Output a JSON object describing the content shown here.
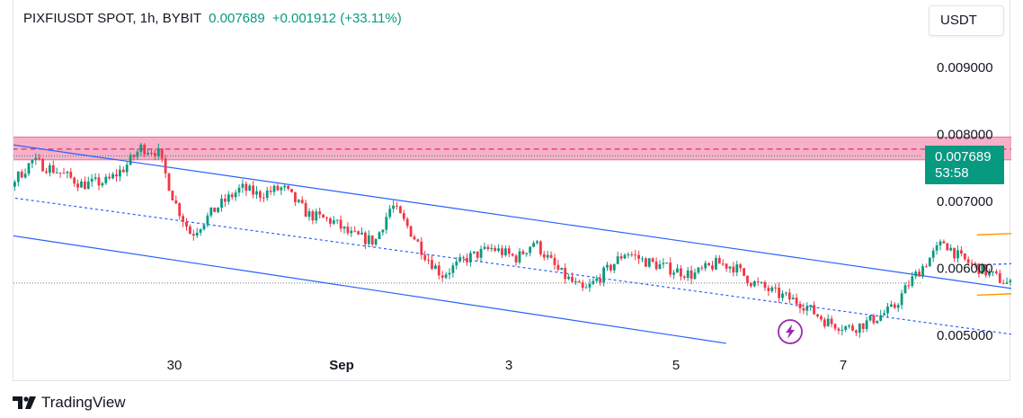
{
  "header": {
    "symbol": "PIXFIUSDT SPOT, 1h, BYBIT",
    "price": "0.007689",
    "change": "+0.001912 (+33.11%)"
  },
  "currency_button": "USDT",
  "price_tag": {
    "price": "0.007689",
    "countdown": "53:58"
  },
  "branding": "TradingView",
  "chart_data": {
    "type": "candlestick",
    "symbol": "PIXFIUSDT",
    "interval": "1h",
    "exchange": "BYBIT",
    "y_axis": {
      "min": 0.0049,
      "max": 0.0093,
      "ticks": [
        "0.009000",
        "0.008000",
        "0.007000",
        "0.006000",
        "0.005000"
      ]
    },
    "x_axis": {
      "ticks": [
        {
          "label": "30",
          "day": 30
        },
        {
          "label": "Sep",
          "day": 32
        },
        {
          "label": "3",
          "day": 34
        },
        {
          "label": "5",
          "day": 36
        },
        {
          "label": "7",
          "day": 38
        }
      ]
    },
    "series_path": [
      [
        27.2,
        0.00765
      ],
      [
        27.5,
        0.008
      ],
      [
        27.8,
        0.0077
      ],
      [
        28.0,
        0.0072
      ],
      [
        28.3,
        0.0076
      ],
      [
        28.6,
        0.00745
      ],
      [
        28.9,
        0.00725
      ],
      [
        29.2,
        0.0073
      ],
      [
        29.4,
        0.0075
      ],
      [
        29.6,
        0.0078
      ],
      [
        29.8,
        0.00775
      ],
      [
        30.0,
        0.007
      ],
      [
        30.2,
        0.0065
      ],
      [
        30.5,
        0.0069
      ],
      [
        30.8,
        0.0072
      ],
      [
        31.0,
        0.0071
      ],
      [
        31.3,
        0.0072
      ],
      [
        31.6,
        0.0068
      ],
      [
        31.9,
        0.0067
      ],
      [
        32.1,
        0.0065
      ],
      [
        32.4,
        0.0064
      ],
      [
        32.6,
        0.00695
      ],
      [
        32.8,
        0.0066
      ],
      [
        33.0,
        0.0062
      ],
      [
        33.2,
        0.0059
      ],
      [
        33.5,
        0.00615
      ],
      [
        33.8,
        0.0063
      ],
      [
        34.1,
        0.00615
      ],
      [
        34.3,
        0.0064
      ],
      [
        34.6,
        0.00595
      ],
      [
        34.9,
        0.00565
      ],
      [
        35.2,
        0.006
      ],
      [
        35.4,
        0.00625
      ],
      [
        35.6,
        0.00612
      ],
      [
        35.9,
        0.006
      ],
      [
        36.2,
        0.0059
      ],
      [
        36.5,
        0.00608
      ],
      [
        36.7,
        0.00602
      ],
      [
        36.9,
        0.0058
      ],
      [
        37.2,
        0.00562
      ],
      [
        37.5,
        0.00548
      ],
      [
        37.8,
        0.0052
      ],
      [
        38.1,
        0.0051
      ],
      [
        38.3,
        0.0052
      ],
      [
        38.6,
        0.0054
      ],
      [
        38.8,
        0.0058
      ],
      [
        39.0,
        0.0061
      ],
      [
        39.2,
        0.0064
      ],
      [
        39.4,
        0.00615
      ],
      [
        39.7,
        0.00595
      ],
      [
        40.0,
        0.00575
      ],
      [
        40.3,
        0.00585
      ],
      [
        40.6,
        0.0062
      ],
      [
        40.8,
        0.00635
      ],
      [
        41.0,
        0.0061
      ],
      [
        41.2,
        0.00592
      ],
      [
        41.4,
        0.0057
      ],
      [
        41.6,
        0.00588
      ],
      [
        41.8,
        0.0065
      ],
      [
        42.0,
        0.0069
      ],
      [
        42.2,
        0.0076
      ],
      [
        42.4,
        0.00769
      ]
    ],
    "horizontal_levels": [
      0.00768,
      0.00578
    ],
    "resistance_zone": {
      "from_day": 27.2,
      "to_day": 42.8,
      "low": 0.00762,
      "high": 0.00796,
      "mid": 0.00778
    },
    "descending_channel": {
      "upper": [
        [
          27.2,
          0.008
        ],
        [
          41.4,
          0.00545
        ]
      ],
      "middle": [
        [
          27.2,
          0.0072
        ],
        [
          40.4,
          0.00495
        ]
      ],
      "lower": [
        [
          27.2,
          0.00665
        ],
        [
          36.6,
          0.00488
        ]
      ]
    },
    "ascending_channel": {
      "upper": [
        [
          39.6,
          0.0065
        ],
        [
          42.8,
          0.00665
        ]
      ],
      "middle": [
        [
          39.6,
          0.00605
        ],
        [
          42.8,
          0.0062
        ]
      ],
      "lower": [
        [
          39.6,
          0.0056
        ],
        [
          42.8,
          0.00575
        ]
      ]
    },
    "colors": {
      "up": "#089981",
      "down": "#f23645",
      "channel": "#2962ff",
      "range_channel": "#ff9800",
      "zone": "#f48fb1",
      "zone_line": "#c2185b",
      "flash_icon": "#9c27b0"
    }
  }
}
